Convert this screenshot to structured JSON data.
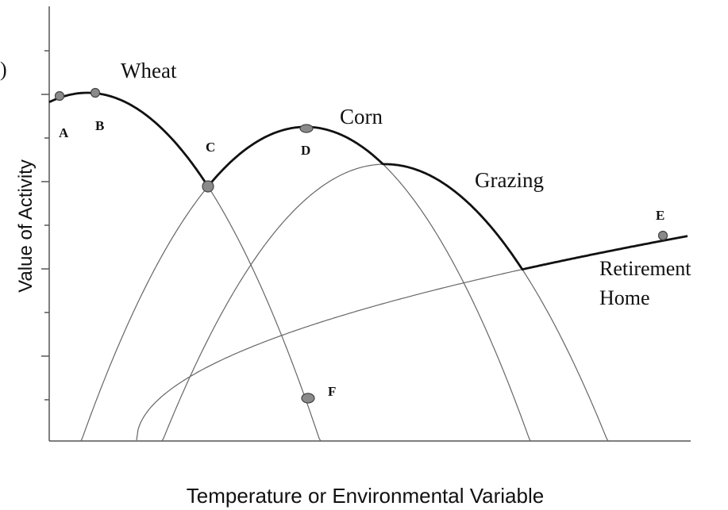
{
  "panel_label": ")",
  "axes": {
    "y_label": "Value of Activity",
    "x_label": "Temperature or Environmental Variable"
  },
  "curves": {
    "wheat": "Wheat",
    "corn": "Corn",
    "grazing": "Grazing",
    "retirement": [
      "Retirement",
      "Home"
    ]
  },
  "points": [
    "A",
    "B",
    "C",
    "D",
    "E",
    "F"
  ]
}
